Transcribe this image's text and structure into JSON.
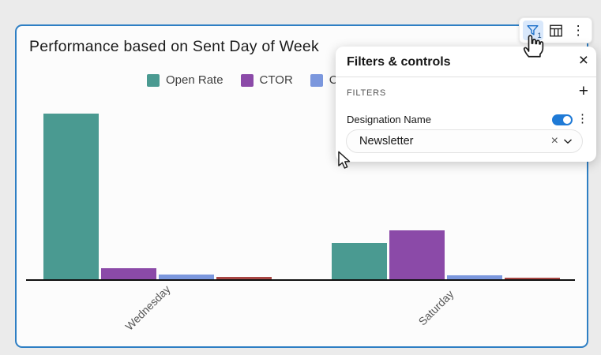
{
  "window": {
    "background": "#ebebeb"
  },
  "card": {
    "title": "Performance based on Sent Day of Week",
    "border_color": "#2e7fc4",
    "background": "#fcfcfc"
  },
  "toolbar": {
    "filter_button": {
      "icon": "filter-funnel",
      "badge": "1",
      "active": true,
      "active_bg": "#d9e8fb",
      "icon_color": "#1a6fc9"
    },
    "table_button": {
      "icon": "data-table"
    },
    "overflow_button": {
      "icon": "kebab"
    }
  },
  "legend": {
    "items": [
      {
        "label": "Open Rate",
        "color": "#4a9a91"
      },
      {
        "label": "CTOR",
        "color": "#8b4aa8"
      },
      {
        "label": "C",
        "color": "#7b97dd"
      }
    ]
  },
  "chart_data": {
    "type": "bar",
    "title": "Performance based on Sent Day of Week",
    "categories": [
      "Wednesday",
      "Saturday"
    ],
    "series": [
      {
        "name": "Open Rate",
        "color": "#4a9a91",
        "values_rel": [
          100,
          22.3
        ]
      },
      {
        "name": "CTOR",
        "color": "#8b4aa8",
        "values_rel": [
          7.1,
          29.9
        ]
      },
      {
        "name": "C… (legend truncated)",
        "color": "#7b97dd",
        "values_rel": [
          3.3,
          2.8
        ]
      },
      {
        "name": "(legend hidden by panel)",
        "color": "#a84643",
        "values_rel": [
          1.9,
          1.4
        ]
      }
    ],
    "value_unit": "relative bar height, tallest bar = 100 (y-axis not labeled)",
    "legend_position": "top",
    "grid": false,
    "x_tick_rotation_deg": -45
  },
  "panel": {
    "title": "Filters & controls",
    "section_label": "FILTERS",
    "filter": {
      "name": "Designation Name",
      "enabled": true,
      "value": "Newsletter"
    },
    "accent_color": "#1f7ad6"
  },
  "icons": {
    "close": "×",
    "add": "+",
    "clear": "×",
    "chevron_down": "chevron-down",
    "kebab": "⋮"
  }
}
